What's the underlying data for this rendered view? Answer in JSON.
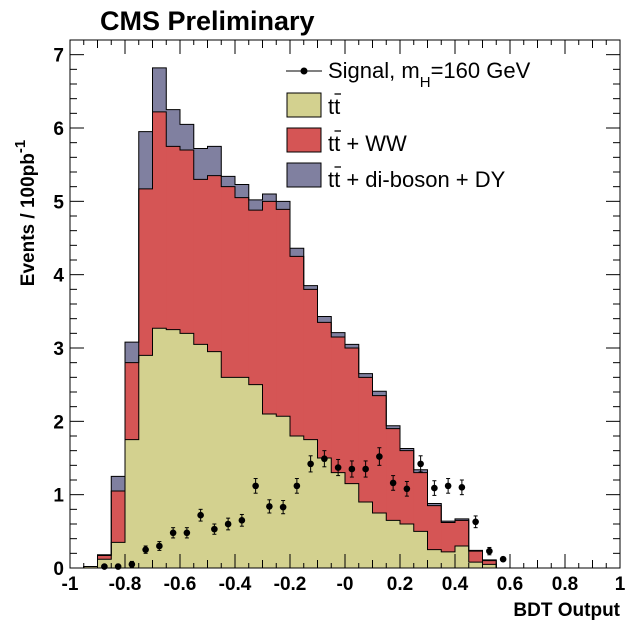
{
  "chart_data": {
    "type": "stacked-histogram",
    "title": "CMS Preliminary",
    "xlabel": "BDT Output",
    "ylabel": "Events / 100pb",
    "ylabel_sup": "-1",
    "xlim": [
      -1,
      1
    ],
    "ylim": [
      0,
      7.2
    ],
    "xticks": [
      -1,
      -0.8,
      -0.6,
      -0.4,
      -0.2,
      0,
      0.2,
      0.4,
      0.6,
      0.8,
      1
    ],
    "xtick_labels": [
      "-1",
      "-0.8",
      "-0.6",
      "-0.4",
      "-0.2",
      "-0",
      "0.2",
      "0.4",
      "0.6",
      "0.8",
      "1"
    ],
    "yticks": [
      0,
      1,
      2,
      3,
      4,
      5,
      6,
      7
    ],
    "ytick_labels": [
      "0",
      "1",
      "2",
      "3",
      "4",
      "5",
      "6",
      "7"
    ],
    "bin_edges": [
      -0.95,
      -0.9,
      -0.85,
      -0.8,
      -0.75,
      -0.7,
      -0.65,
      -0.6,
      -0.55,
      -0.5,
      -0.45,
      -0.4,
      -0.35,
      -0.3,
      -0.25,
      -0.2,
      -0.15,
      -0.1,
      -0.05,
      0,
      0.05,
      0.1,
      0.15,
      0.2,
      0.25,
      0.3,
      0.35,
      0.4,
      0.45,
      0.5,
      0.55
    ],
    "series": [
      {
        "name": "tt",
        "label_main": "tt",
        "color": "#d3d18f",
        "values": [
          0.02,
          0.12,
          0.35,
          1.75,
          2.9,
          3.27,
          3.25,
          3.2,
          3.05,
          2.95,
          2.6,
          2.6,
          2.5,
          2.1,
          2.07,
          1.8,
          1.75,
          1.5,
          1.3,
          1.15,
          0.9,
          0.75,
          0.65,
          0.6,
          0.5,
          0.25,
          0.22,
          0.3,
          0.08,
          0.05
        ]
      },
      {
        "name": "tt + WW",
        "label_main": "tt + WW",
        "color": "#d55555",
        "values": [
          0,
          0.05,
          0.7,
          1.05,
          2.27,
          2.95,
          2.5,
          2.5,
          2.25,
          2.4,
          2.6,
          2.45,
          2.38,
          2.9,
          2.82,
          2.45,
          2.05,
          1.85,
          1.85,
          1.85,
          1.7,
          1.6,
          1.25,
          1.0,
          0.8,
          0.6,
          0.4,
          0.35,
          0.15,
          0.05
        ]
      },
      {
        "name": "tt + di-boson + DY",
        "label_main": "tt + di-boson + DY",
        "color": "#8080a0",
        "values": [
          0,
          0.01,
          0.2,
          0.28,
          0.78,
          0.6,
          0.5,
          0.35,
          0.42,
          0.4,
          0.14,
          0.18,
          0.14,
          0.1,
          0.11,
          0.11,
          0.05,
          0.08,
          0.06,
          0.05,
          0.05,
          0.06,
          0.04,
          0.03,
          0.04,
          0.03,
          0.02,
          0.02,
          0.01,
          0.01
        ]
      }
    ],
    "signal": {
      "name": "Signal",
      "label_main": "Signal, m",
      "label_sub": "H",
      "label_tail": "=160 GeV",
      "color": "#000000",
      "x": [
        -0.875,
        -0.825,
        -0.775,
        -0.725,
        -0.675,
        -0.625,
        -0.575,
        -0.525,
        -0.475,
        -0.425,
        -0.375,
        -0.325,
        -0.275,
        -0.225,
        -0.175,
        -0.125,
        -0.075,
        -0.025,
        0.025,
        0.075,
        0.125,
        0.175,
        0.225,
        0.275,
        0.325,
        0.375,
        0.425,
        0.475,
        0.525,
        0.575
      ],
      "y": [
        0.02,
        0.02,
        0.05,
        0.25,
        0.3,
        0.48,
        0.48,
        0.72,
        0.53,
        0.6,
        0.65,
        1.12,
        0.84,
        0.83,
        1.12,
        1.42,
        1.49,
        1.37,
        1.35,
        1.35,
        1.52,
        1.16,
        1.08,
        1.42,
        1.09,
        1.12,
        1.1,
        0.63,
        0.23,
        0.12
      ],
      "err": [
        0.02,
        0.03,
        0.04,
        0.05,
        0.06,
        0.07,
        0.07,
        0.08,
        0.07,
        0.08,
        0.08,
        0.1,
        0.09,
        0.09,
        0.1,
        0.11,
        0.11,
        0.11,
        0.11,
        0.11,
        0.12,
        0.1,
        0.1,
        0.11,
        0.1,
        0.1,
        0.1,
        0.08,
        0.05,
        0.03
      ]
    },
    "legend_position": "top-right",
    "grid": false
  }
}
